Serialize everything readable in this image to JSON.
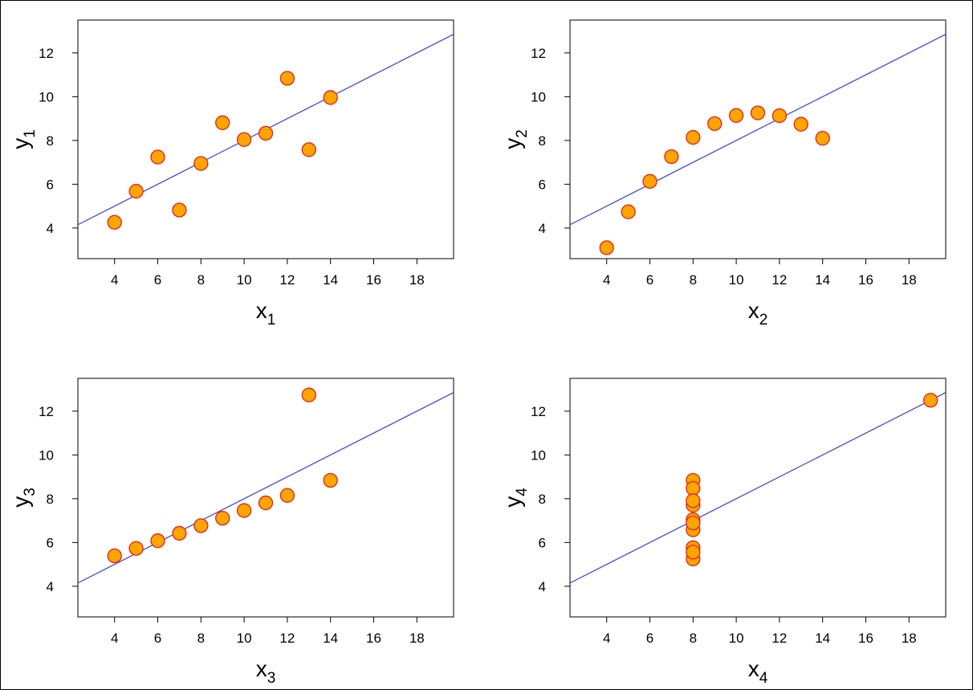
{
  "chart_data": [
    {
      "type": "scatter",
      "xlabel": "x",
      "xlabel_sub": "1",
      "ylabel": "y",
      "ylabel_sub": "1",
      "xlim": [
        2.3,
        19.7
      ],
      "ylim": [
        2.6,
        13.5
      ],
      "xticks": [
        4,
        6,
        8,
        10,
        12,
        14,
        16,
        18
      ],
      "yticks": [
        4,
        6,
        8,
        10,
        12
      ],
      "x": [
        10,
        8,
        13,
        9,
        11,
        14,
        6,
        4,
        12,
        7,
        5
      ],
      "y": [
        8.04,
        6.95,
        7.58,
        8.81,
        8.33,
        9.96,
        7.24,
        4.26,
        10.84,
        4.82,
        5.68
      ],
      "fit_line": {
        "intercept": 3.0,
        "slope": 0.5
      },
      "point_fill": "#ffa500",
      "point_stroke": "#e8201a",
      "line_color": "#3a3aef",
      "grid": false
    },
    {
      "type": "scatter",
      "xlabel": "x",
      "xlabel_sub": "2",
      "ylabel": "y",
      "ylabel_sub": "2",
      "xlim": [
        2.3,
        19.7
      ],
      "ylim": [
        2.6,
        13.5
      ],
      "xticks": [
        4,
        6,
        8,
        10,
        12,
        14,
        16,
        18
      ],
      "yticks": [
        4,
        6,
        8,
        10,
        12
      ],
      "x": [
        10,
        8,
        13,
        9,
        11,
        14,
        6,
        4,
        12,
        7,
        5
      ],
      "y": [
        9.14,
        8.14,
        8.74,
        8.77,
        9.26,
        8.1,
        6.13,
        3.1,
        9.13,
        7.26,
        4.74
      ],
      "fit_line": {
        "intercept": 3.0,
        "slope": 0.5
      },
      "point_fill": "#ffa500",
      "point_stroke": "#e8201a",
      "line_color": "#3a3aef",
      "grid": false
    },
    {
      "type": "scatter",
      "xlabel": "x",
      "xlabel_sub": "3",
      "ylabel": "y",
      "ylabel_sub": "3",
      "xlim": [
        2.3,
        19.7
      ],
      "ylim": [
        2.6,
        13.5
      ],
      "xticks": [
        4,
        6,
        8,
        10,
        12,
        14,
        16,
        18
      ],
      "yticks": [
        4,
        6,
        8,
        10,
        12
      ],
      "x": [
        10,
        8,
        13,
        9,
        11,
        14,
        6,
        4,
        12,
        7,
        5
      ],
      "y": [
        7.46,
        6.77,
        12.74,
        7.11,
        7.81,
        8.84,
        6.08,
        5.39,
        8.15,
        6.42,
        5.73
      ],
      "fit_line": {
        "intercept": 3.0,
        "slope": 0.5
      },
      "point_fill": "#ffa500",
      "point_stroke": "#e8201a",
      "line_color": "#3a3aef",
      "grid": false
    },
    {
      "type": "scatter",
      "xlabel": "x",
      "xlabel_sub": "4",
      "ylabel": "y",
      "ylabel_sub": "4",
      "xlim": [
        2.3,
        19.7
      ],
      "ylim": [
        2.6,
        13.5
      ],
      "xticks": [
        4,
        6,
        8,
        10,
        12,
        14,
        16,
        18
      ],
      "yticks": [
        4,
        6,
        8,
        10,
        12
      ],
      "x": [
        8,
        8,
        8,
        8,
        8,
        8,
        8,
        19,
        8,
        8,
        8
      ],
      "y": [
        6.58,
        5.76,
        7.71,
        8.84,
        8.47,
        7.04,
        5.25,
        12.5,
        5.56,
        7.91,
        6.89
      ],
      "fit_line": {
        "intercept": 3.0,
        "slope": 0.5
      },
      "point_fill": "#ffa500",
      "point_stroke": "#e8201a",
      "line_color": "#3a3aef",
      "grid": false
    }
  ]
}
